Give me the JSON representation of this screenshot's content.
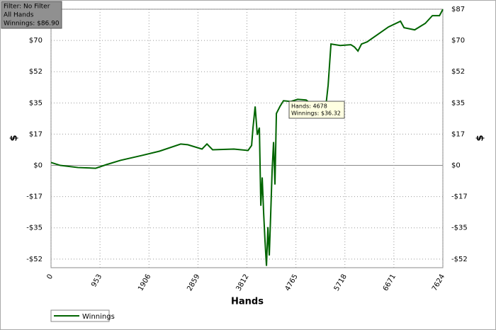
{
  "chart_data": {
    "type": "line",
    "info_box": [
      "Filter: No Filter",
      "All Hands",
      "Winnings: $86.90"
    ],
    "tooltip": [
      "Hands: 4678",
      "Winnings: $36.32"
    ],
    "xlabel": "Hands",
    "ylabel": "$",
    "y2label": "$",
    "grid": true,
    "legend": "bottom-left",
    "xlim": [
      0,
      7624
    ],
    "xticks": [
      0,
      953,
      1906,
      2859,
      3812,
      4765,
      5718,
      6671,
      7624
    ],
    "ylim": [
      -57,
      87
    ],
    "yticks": [
      {
        "value": 87,
        "label": "$87"
      },
      {
        "value": 69.6,
        "label": "$70"
      },
      {
        "value": 52.2,
        "label": "$52"
      },
      {
        "value": 34.8,
        "label": "$35"
      },
      {
        "value": 17.4,
        "label": "$17"
      },
      {
        "value": 0,
        "label": "$0"
      },
      {
        "value": -17.4,
        "label": "-$17"
      },
      {
        "value": -34.8,
        "label": "-$35"
      },
      {
        "value": -52.2,
        "label": "-$52"
      }
    ],
    "x": [
      0,
      179,
      524,
      869,
      1076,
      1351,
      1765,
      2110,
      2524,
      2662,
      2938,
      3034,
      3144,
      3558,
      3834,
      3903,
      3930,
      3972,
      4013,
      4054,
      4082,
      4109,
      4137,
      4164,
      4192,
      4220,
      4247,
      4275,
      4302,
      4330,
      4357,
      4385,
      4454,
      4523,
      4661,
      4799,
      4964,
      5075,
      5351,
      5392,
      5447,
      5627,
      5834,
      5903,
      5972,
      6041,
      6151,
      6386,
      6565,
      6800,
      6869,
      7076,
      7282,
      7420,
      7558,
      7624
    ],
    "series": [
      {
        "name": "Winnings",
        "color": "#006400",
        "values": [
          1.6,
          0,
          -1.2,
          -1.6,
          0.4,
          2.8,
          5.5,
          7.9,
          11.9,
          11.5,
          9.1,
          11.9,
          8.7,
          9.1,
          8.3,
          11.1,
          21,
          32.8,
          17,
          21,
          -22.5,
          -6.7,
          -26.5,
          -42.3,
          -56,
          -34.4,
          -50.2,
          -26.5,
          -2.8,
          13,
          -10.7,
          28.9,
          32.8,
          36,
          35.6,
          36.8,
          36.4,
          34,
          34,
          44.7,
          67.6,
          66.8,
          67.2,
          66,
          63.7,
          67.6,
          68.8,
          73.5,
          77.1,
          80.3,
          76.7,
          75.5,
          79.1,
          83.4,
          83.4,
          86.9
        ]
      }
    ]
  }
}
